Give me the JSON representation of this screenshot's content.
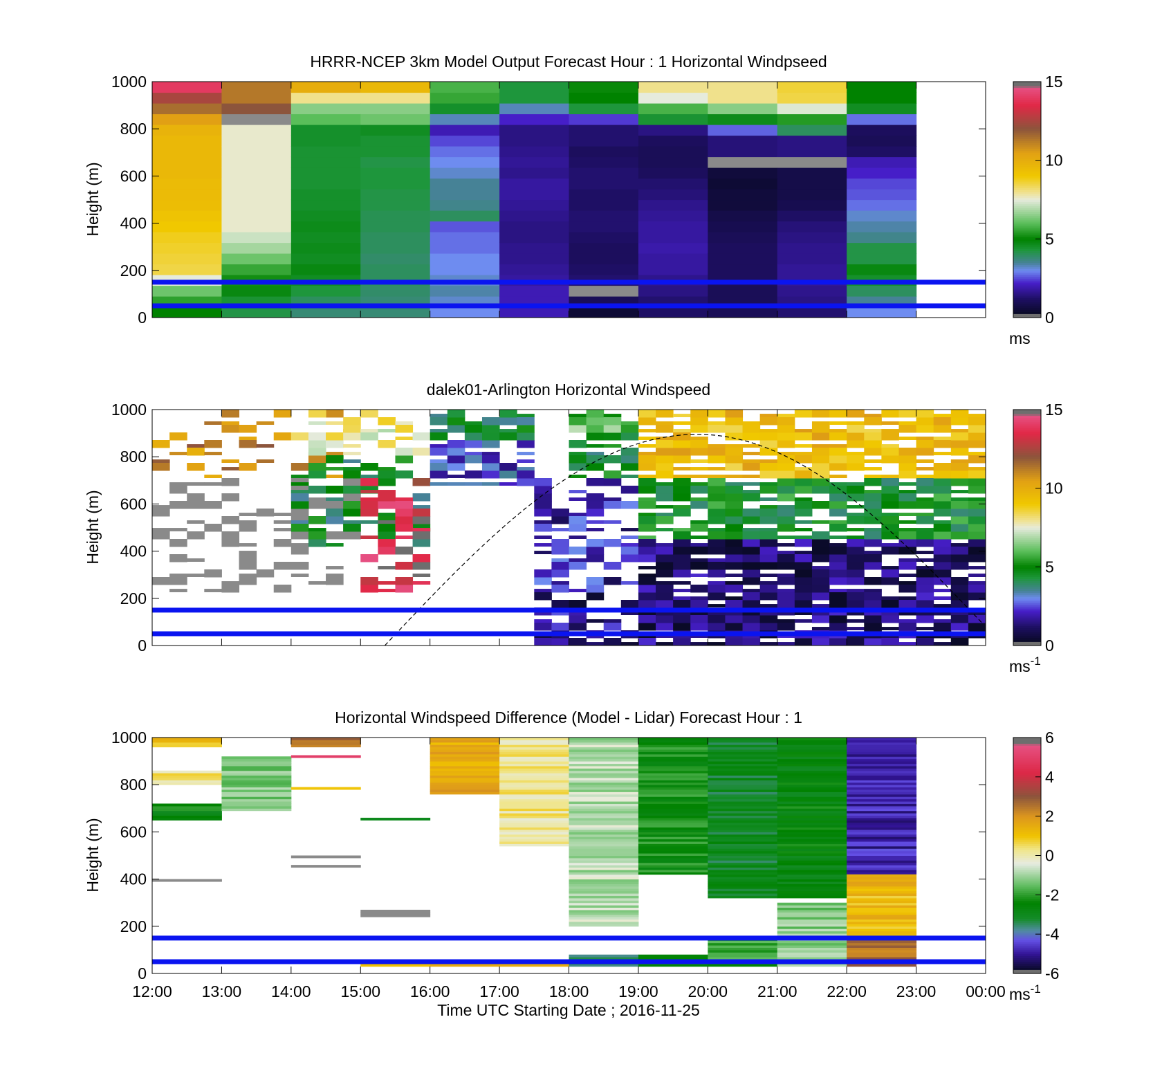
{
  "chart_data": [
    {
      "type": "heatmap",
      "title": "HRRR-NCEP 3km Model Output   Forecast Hour : 1 Horizontal Windpseed",
      "ylabel": "Height (m)",
      "ylim": [
        0,
        1000
      ],
      "yticks": [
        "0",
        "200",
        "400",
        "600",
        "800",
        "1000"
      ],
      "x_ticks": [
        "12:00",
        "13:00",
        "14:00",
        "15:00",
        "16:00",
        "17:00",
        "18:00",
        "19:00",
        "20:00",
        "21:00",
        "22:00",
        "23:00",
        "00:00"
      ],
      "x_ticks_labeled": false,
      "colorbar": {
        "min": 0,
        "max": 15,
        "ticks": [
          "0",
          "5",
          "10",
          "15"
        ],
        "unit": "ms",
        "colormap": "windspeed"
      },
      "hlines": [
        50,
        150
      ],
      "hline_color": "#0a14f0",
      "columns": [
        {
          "t": 0,
          "v": [
            5.0,
            5.5,
            6.2,
            7.5,
            8.5,
            8.6,
            8.7,
            8.8,
            9.0,
            9.2,
            9.4,
            9.5,
            9.5,
            9.6,
            9.6,
            9.6,
            9.6,
            9.8,
            10.5,
            11.5,
            12.5,
            14.0
          ]
        },
        {
          "t": 1,
          "v": [
            4.2,
            4.4,
            4.8,
            5.2,
            5.6,
            6.2,
            6.8,
            7.2,
            7.6,
            7.6,
            7.6,
            7.6,
            7.6,
            7.6,
            7.6,
            7.6,
            7.6,
            7.6,
            -1,
            12.0,
            11.3,
            11.3
          ]
        },
        {
          "t": 2,
          "v": [
            3.8,
            4.0,
            4.3,
            4.6,
            4.8,
            4.6,
            4.7,
            4.6,
            4.7,
            4.6,
            4.5,
            4.5,
            4.4,
            4.4,
            4.4,
            4.4,
            4.5,
            4.5,
            6.0,
            6.5,
            8.0,
            10.0
          ]
        },
        {
          "t": 3,
          "v": [
            3.8,
            3.8,
            3.9,
            4.0,
            4.0,
            3.9,
            4.0,
            4.0,
            4.1,
            4.1,
            4.2,
            4.2,
            4.3,
            4.3,
            4.2,
            4.4,
            4.4,
            4.6,
            6.2,
            6.5,
            8.0,
            9.6
          ]
        },
        {
          "t": 4,
          "v": [
            3.0,
            3.2,
            3.4,
            3.2,
            3.0,
            3.0,
            2.8,
            2.8,
            2.6,
            4.0,
            3.6,
            3.5,
            3.5,
            3.2,
            3.0,
            2.8,
            2.5,
            2.0,
            3.3,
            4.5,
            5.6,
            5.8
          ]
        },
        {
          "t": 5,
          "v": [
            2.0,
            2.0,
            2.0,
            1.8,
            1.7,
            1.6,
            1.6,
            1.5,
            1.5,
            1.6,
            1.7,
            1.8,
            1.8,
            1.6,
            1.7,
            1.6,
            1.5,
            1.5,
            2.2,
            3.3,
            4.3,
            4.3
          ]
        },
        {
          "t": 6,
          "v": [
            0.5,
            1.0,
            -1,
            1.3,
            1.2,
            1.1,
            1.1,
            1.2,
            1.3,
            1.3,
            1.2,
            1.2,
            1.3,
            1.3,
            1.2,
            1.1,
            1.3,
            1.3,
            2.4,
            4.3,
            5.0,
            5.1
          ]
        },
        {
          "t": 7,
          "v": [
            1.2,
            1.3,
            1.5,
            1.6,
            1.8,
            1.8,
            1.9,
            1.8,
            1.8,
            1.7,
            1.6,
            1.4,
            1.3,
            1.1,
            1.0,
            1.0,
            1.1,
            1.5,
            4.4,
            5.8,
            7.5,
            8.0
          ]
        },
        {
          "t": 8,
          "v": [
            1.0,
            1.0,
            1.0,
            1.1,
            1.1,
            1.1,
            1.1,
            1.0,
            0.9,
            0.8,
            0.6,
            0.6,
            0.5,
            0.6,
            -1,
            1.4,
            1.4,
            2.7,
            4.7,
            6.5,
            8.0,
            8.0
          ]
        },
        {
          "t": 9,
          "v": [
            1.3,
            1.5,
            1.6,
            1.7,
            1.7,
            1.6,
            1.6,
            1.5,
            1.4,
            1.2,
            0.9,
            0.8,
            0.8,
            0.8,
            -1,
            1.5,
            1.5,
            4.0,
            5.4,
            7.4,
            8.5,
            8.6
          ]
        },
        {
          "t": 10,
          "v": [
            3.0,
            3.5,
            4.0,
            4.5,
            4.8,
            4.2,
            4.2,
            3.6,
            3.4,
            3.2,
            2.8,
            2.6,
            2.5,
            2.2,
            2.0,
            1.2,
            1.0,
            1.1,
            2.8,
            4.6,
            5.0,
            5.0
          ]
        }
      ]
    },
    {
      "type": "heatmap",
      "title": "dalek01-Arlington  Horizontal Windspeed",
      "ylabel": "Height (m)",
      "ylim": [
        0,
        1000
      ],
      "yticks": [
        "0",
        "200",
        "400",
        "600",
        "800",
        "1000"
      ],
      "x_ticks": [
        "12:00",
        "13:00",
        "14:00",
        "15:00",
        "16:00",
        "17:00",
        "18:00",
        "19:00",
        "20:00",
        "21:00",
        "22:00",
        "23:00",
        "00:00"
      ],
      "x_ticks_labeled": false,
      "colorbar": {
        "min": 0,
        "max": 15,
        "ticks": [
          "0",
          "5",
          "10",
          "15"
        ],
        "unit": "ms",
        "unit_exponent": "-1",
        "colormap": "windspeed"
      },
      "hlines": [
        50,
        150
      ],
      "hline_color": "#0a14f0",
      "dashed_curve": {
        "x_start_hours": 3.35,
        "x_peak_hours": 7.85,
        "peak_height": 895,
        "x_end_hours": 12.0,
        "end_height": 80
      },
      "profile_regions": [
        {
          "hours": [
            0.0,
            3.0
          ],
          "low": [
            200,
            700
          ],
          "high": [
            650,
            1000
          ],
          "low_value": -1,
          "high_value": 11.0,
          "fill": 0.45
        },
        {
          "hours": [
            2.0,
            4.0
          ],
          "low": [
            400,
            800
          ],
          "high": [
            800,
            1000
          ],
          "low_value": 4.5,
          "high_value": 8.0,
          "fill": 0.45
        },
        {
          "hours": [
            3.0,
            4.0
          ],
          "low": [
            200,
            600
          ],
          "high": [
            600,
            700
          ],
          "low_value": 14.0,
          "high_value": 13.0,
          "fill": 0.6
        },
        {
          "hours": [
            4.0,
            5.5
          ],
          "low": [
            650,
            850
          ],
          "high": [
            850,
            1000
          ],
          "low_value": 2.5,
          "high_value": 4.5,
          "fill": 0.85
        },
        {
          "hours": [
            5.5,
            7.0
          ],
          "low": [
            0,
            200
          ],
          "high": [
            200,
            700
          ],
          "low_value": 1.5,
          "high_value": 2.0,
          "fill": 0.7
        },
        {
          "hours": [
            6.0,
            7.0
          ],
          "low": [
            700,
            900
          ],
          "high": [
            900,
            1000
          ],
          "low_value": 4.5,
          "high_value": 6.0,
          "fill": 0.9
        },
        {
          "hours": [
            7.0,
            12.0
          ],
          "low": [
            0,
            450
          ],
          "high": [
            450,
            700
          ],
          "low_value": 1.2,
          "high_value": 4.8,
          "fill": 0.95
        },
        {
          "hours": [
            7.0,
            12.0
          ],
          "low": [
            700,
            1000
          ],
          "high": [
            1000,
            1000
          ],
          "low_value": 9.5,
          "high_value": 9.5,
          "fill": 0.95
        }
      ]
    },
    {
      "type": "heatmap",
      "title": "Horizontal Windspeed Difference (Model - Lidar) Forecast Hour : 1",
      "xlabel": "Time UTC  Starting Date ; 2016-11-25",
      "ylabel": "Height (m)",
      "ylim": [
        0,
        1000
      ],
      "yticks": [
        "0",
        "200",
        "400",
        "600",
        "800",
        "1000"
      ],
      "x_ticks": [
        "12:00",
        "13:00",
        "14:00",
        "15:00",
        "16:00",
        "17:00",
        "18:00",
        "19:00",
        "20:00",
        "21:00",
        "22:00",
        "23:00",
        "00:00"
      ],
      "x_ticks_labeled": true,
      "colorbar": {
        "min": -6,
        "max": 6,
        "ticks": [
          "-6",
          "-4",
          "-2",
          "0",
          "2",
          "4",
          "6"
        ],
        "unit": "ms",
        "unit_exponent": "-1",
        "colormap": "difference"
      },
      "hlines": [
        50,
        150
      ],
      "hline_color": "#0a14f0",
      "columns": [
        {
          "t": 0,
          "segments": [
            {
              "y": [
                960,
                1000
              ],
              "v": 1.0
            },
            {
              "y": [
                800,
                860
              ],
              "v": 0.3
            },
            {
              "y": [
                650,
                720
              ],
              "v": -2.5
            },
            {
              "y": [
                390,
                400
              ],
              "v": -9
            }
          ]
        },
        {
          "t": 1,
          "segments": [
            {
              "y": [
                690,
                920
              ],
              "v": -1.2
            }
          ]
        },
        {
          "t": 2,
          "segments": [
            {
              "y": [
                960,
                1000
              ],
              "v": 2.6
            },
            {
              "y": [
                915,
                925
              ],
              "v": 4.5
            },
            {
              "y": [
                780,
                790
              ],
              "v": 1.0
            },
            {
              "y": [
                490,
                500
              ],
              "v": -9
            },
            {
              "y": [
                450,
                460
              ],
              "v": -9
            }
          ]
        },
        {
          "t": 3,
          "segments": [
            {
              "y": [
                650,
                660
              ],
              "v": -3.0
            },
            {
              "y": [
                240,
                270
              ],
              "v": -9
            },
            {
              "y": [
                30,
                40
              ],
              "v": 1.5
            }
          ]
        },
        {
          "t": 4,
          "segments": [
            {
              "y": [
                760,
                1000
              ],
              "v": 1.6
            },
            {
              "y": [
                30,
                60
              ],
              "v": 1.5
            }
          ]
        },
        {
          "t": 5,
          "segments": [
            {
              "y": [
                540,
                1000
              ],
              "v": 0.2
            },
            {
              "y": [
                30,
                60
              ],
              "v": 1.0
            }
          ]
        },
        {
          "t": 6,
          "segments": [
            {
              "y": [
                200,
                1000
              ],
              "v": -0.8
            },
            {
              "y": [
                30,
                80
              ],
              "v": -3.2
            }
          ]
        },
        {
          "t": 7,
          "segments": [
            {
              "y": [
                420,
                1000
              ],
              "v": -2.3
            },
            {
              "y": [
                30,
                80
              ],
              "v": -2.5
            }
          ]
        },
        {
          "t": 8,
          "segments": [
            {
              "y": [
                320,
                1000
              ],
              "v": -3.0
            },
            {
              "y": [
                30,
                150
              ],
              "v": -2.0
            }
          ]
        },
        {
          "t": 9,
          "segments": [
            {
              "y": [
                320,
                1000
              ],
              "v": -2.6
            },
            {
              "y": [
                30,
                300
              ],
              "v": -1.2
            }
          ]
        },
        {
          "t": 10,
          "segments": [
            {
              "y": [
                420,
                1000
              ],
              "v": -4.8
            },
            {
              "y": [
                150,
                420
              ],
              "v": 1.2
            },
            {
              "y": [
                30,
                150
              ],
              "v": 2.6
            }
          ]
        }
      ]
    }
  ]
}
